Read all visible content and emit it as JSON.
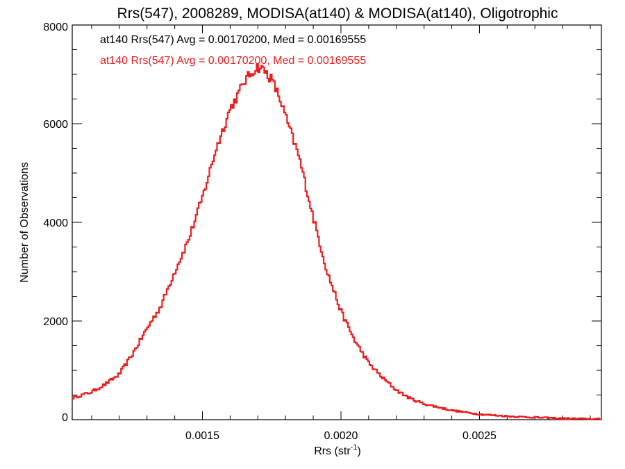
{
  "chart_data": {
    "type": "histogram",
    "title": "Rrs(547), 2008289, MODISA(at140) & MODISA(at140), Oligotrophic",
    "xlabel": "Rrs (str",
    "xlabel_superscript": "-1",
    "xlabel_suffix": ")",
    "ylabel": "Number of Observations",
    "xlim": [
      0.00103,
      0.00294
    ],
    "ylim": [
      0,
      8000
    ],
    "x_ticks": [
      {
        "value": 0.0015,
        "label": "0.0015"
      },
      {
        "value": 0.002,
        "label": "0.0020"
      },
      {
        "value": 0.0025,
        "label": "0.0025"
      }
    ],
    "y_ticks": [
      {
        "value": 0,
        "label": "0"
      },
      {
        "value": 2000,
        "label": "2000"
      },
      {
        "value": 4000,
        "label": "4000"
      },
      {
        "value": 6000,
        "label": "6000"
      },
      {
        "value": 8000,
        "label": "8000"
      }
    ],
    "annotations": [
      {
        "text": "at140 Rrs(547) Avg = 0.00170200, Med = 0.00169555",
        "color": "#000000"
      },
      {
        "text": "at140 Rrs(547) Avg = 0.00170200, Med = 0.00169555",
        "color": "#ee1c1c"
      }
    ],
    "series": [
      {
        "color": "#ee1c1c",
        "points": [
          [
            0.00103,
            440
          ],
          [
            0.0011,
            560
          ],
          [
            0.00115,
            720
          ],
          [
            0.0012,
            920
          ],
          [
            0.00125,
            1350
          ],
          [
            0.0013,
            1850
          ],
          [
            0.00135,
            2300
          ],
          [
            0.0014,
            3000
          ],
          [
            0.00145,
            3650
          ],
          [
            0.0015,
            4500
          ],
          [
            0.00155,
            5500
          ],
          [
            0.0016,
            6300
          ],
          [
            0.00163,
            6600
          ],
          [
            0.00165,
            6850
          ],
          [
            0.00168,
            7050
          ],
          [
            0.0017,
            7150
          ],
          [
            0.00172,
            7100
          ],
          [
            0.00175,
            6900
          ],
          [
            0.00178,
            6500
          ],
          [
            0.0018,
            6150
          ],
          [
            0.00185,
            5300
          ],
          [
            0.0019,
            4100
          ],
          [
            0.00195,
            3000
          ],
          [
            0.002,
            2200
          ],
          [
            0.00205,
            1600
          ],
          [
            0.0021,
            1150
          ],
          [
            0.00215,
            850
          ],
          [
            0.0022,
            600
          ],
          [
            0.00225,
            430
          ],
          [
            0.0023,
            320
          ],
          [
            0.0024,
            190
          ],
          [
            0.0025,
            110
          ],
          [
            0.0026,
            70
          ],
          [
            0.0027,
            45
          ],
          [
            0.0028,
            25
          ],
          [
            0.00294,
            10
          ]
        ]
      }
    ]
  }
}
